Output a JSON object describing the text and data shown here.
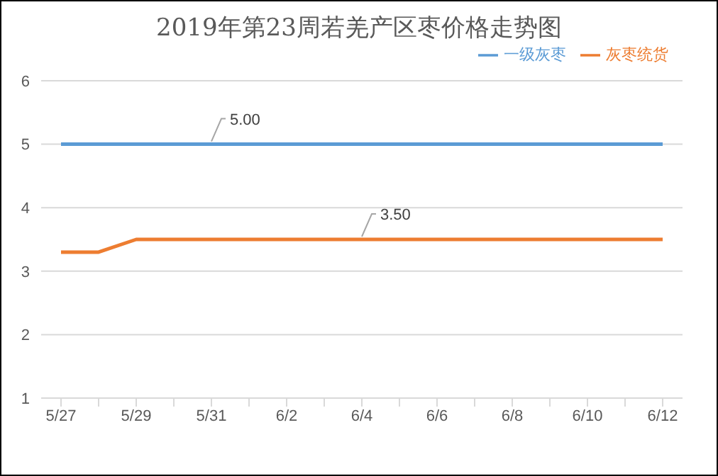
{
  "chart_data": {
    "type": "line",
    "title": "2019年第23周若羌产区枣价格走势图",
    "categories": [
      "5/27",
      null,
      "5/29",
      null,
      "5/31",
      null,
      "6/2",
      null,
      "6/4",
      null,
      "6/6",
      null,
      "6/8",
      null,
      "6/10",
      null,
      "6/12"
    ],
    "series": [
      {
        "name": "灰枣统货",
        "color": "#ed7d31",
        "values": [
          3.3,
          3.3,
          3.5,
          3.5,
          3.5,
          3.5,
          3.5,
          3.5,
          3.5,
          3.5,
          3.5,
          3.5,
          3.5,
          3.5,
          3.5,
          3.5,
          3.5
        ],
        "value_labels": [
          null,
          null,
          null,
          null,
          null,
          null,
          null,
          null,
          "3.50",
          null,
          null,
          null,
          null,
          null,
          null,
          null,
          null
        ]
      },
      {
        "name": "一级灰枣",
        "color": "#5b9bd5",
        "values": [
          5,
          5,
          5,
          5,
          5,
          5,
          5,
          5,
          5,
          5,
          5,
          5,
          5,
          5,
          5,
          5,
          5
        ],
        "value_labels": [
          null,
          null,
          null,
          null,
          "5.00",
          null,
          null,
          null,
          null,
          null,
          null,
          null,
          null,
          null,
          null,
          null,
          null
        ]
      }
    ],
    "ylim": [
      1,
      6
    ],
    "yticks": [
      1,
      2,
      3,
      4,
      5,
      6
    ],
    "grid": "y",
    "legend": "top right",
    "marker": "none",
    "line_style": "solid"
  }
}
